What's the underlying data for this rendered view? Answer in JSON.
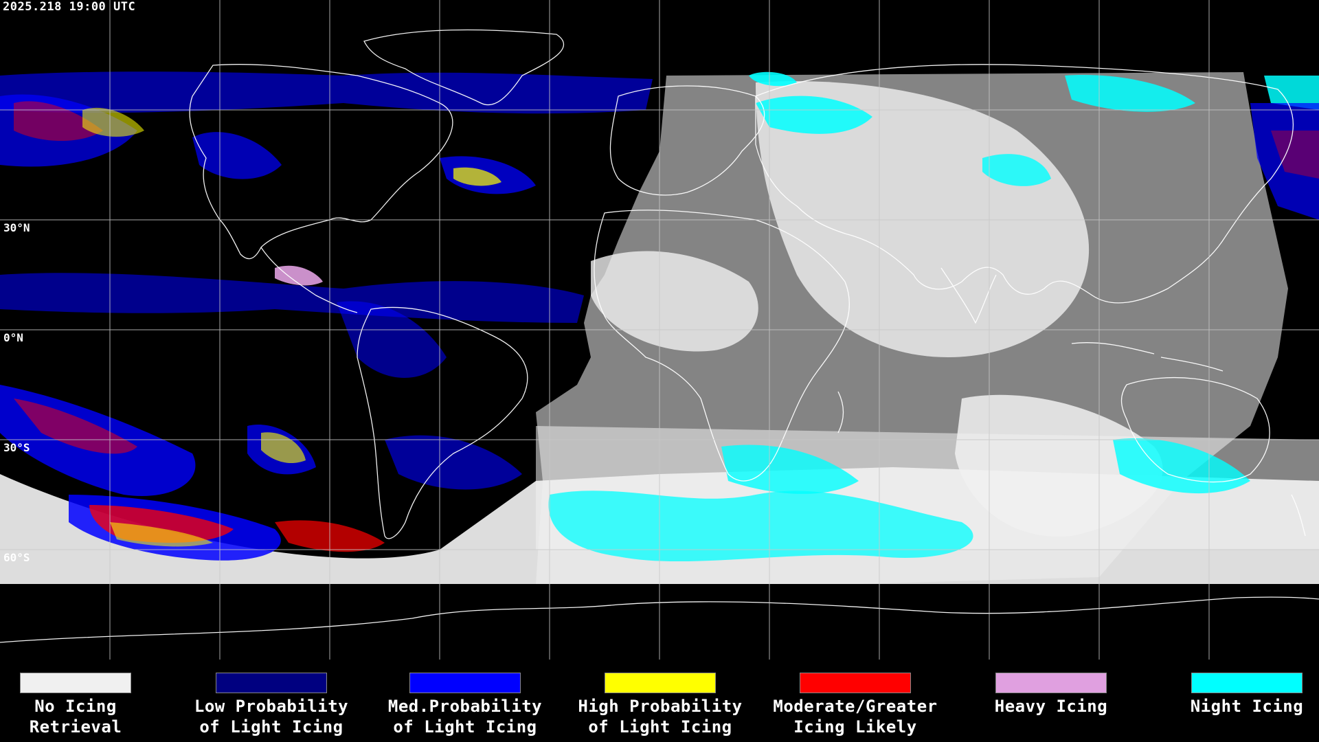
{
  "timestamp": "2025.218 19:00 UTC",
  "lat_labels": [
    "30°N",
    "0°N",
    "30°S",
    "60°S"
  ],
  "colors": {
    "background": "#000000",
    "no_icing": "#f0f0f0",
    "low": "#000080",
    "med": "#0000ff",
    "high": "#ffff00",
    "moderate": "#ff0000",
    "heavy": "#e0a0e0",
    "night": "#00ffff",
    "coast": "#ffffff",
    "grid": "#c8c8c8"
  },
  "legend": [
    {
      "label": "No Icing\nRetrieval",
      "color": "#f0f0f0"
    },
    {
      "label": "Low Probability\nof Light Icing",
      "color": "#000080"
    },
    {
      "label": "Med.Probability\nof Light Icing",
      "color": "#0000ff"
    },
    {
      "label": "High Probability\nof Light Icing",
      "color": "#ffff00"
    },
    {
      "label": "Moderate/Greater\nIcing Likely",
      "color": "#ff0000"
    },
    {
      "label": "Heavy Icing",
      "color": "#e0a0e0"
    },
    {
      "label": "Night Icing",
      "color": "#00ffff"
    }
  ]
}
